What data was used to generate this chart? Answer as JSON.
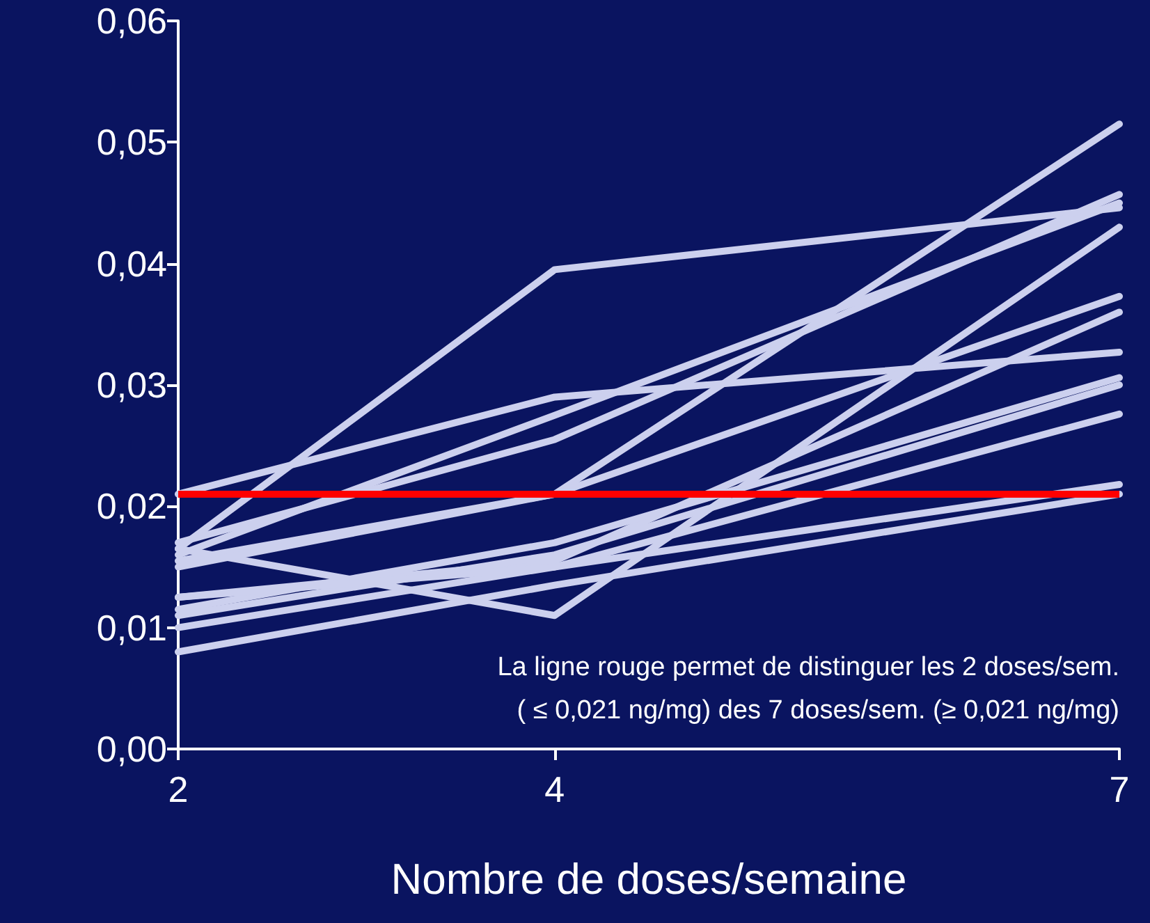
{
  "chart_data": {
    "type": "line",
    "xlabel": "Nombre de doses/semaine",
    "x": [
      2,
      4,
      7
    ],
    "xlim": [
      2,
      7
    ],
    "xticks": [
      2,
      4,
      7
    ],
    "ylim": [
      0,
      0.06
    ],
    "yticks": [
      {
        "value": 0,
        "label": "0,00"
      },
      {
        "value": 0.01,
        "label": "0,01"
      },
      {
        "value": 0.02,
        "label": "0,02"
      },
      {
        "value": 0.03,
        "label": "0,03"
      },
      {
        "value": 0.04,
        "label": "0,04"
      },
      {
        "value": 0.05,
        "label": "0,05"
      },
      {
        "value": 0.06,
        "label": "0,06"
      }
    ],
    "series": [
      {
        "color": "#ccd0ee",
        "values": [
          0.021,
          0.029,
          0.0327
        ]
      },
      {
        "color": "#ccd0ee",
        "values": [
          0.0165,
          0.0395,
          0.0446
        ]
      },
      {
        "color": "#ccd0ee",
        "values": [
          0.017,
          0.0255,
          0.0457
        ]
      },
      {
        "color": "#ccd0ee",
        "values": [
          0.016,
          0.0275,
          0.045
        ]
      },
      {
        "color": "#ccd0ee",
        "values": [
          0.0155,
          0.021,
          0.0515
        ]
      },
      {
        "color": "#ccd0ee",
        "values": [
          0.0165,
          0.011,
          0.043
        ]
      },
      {
        "color": "#ccd0ee",
        "values": [
          0.0125,
          0.0155,
          0.036
        ]
      },
      {
        "color": "#ccd0ee",
        "values": [
          0.015,
          0.021,
          0.0373
        ]
      },
      {
        "color": "#ccd0ee",
        "values": [
          0.0115,
          0.017,
          0.0306
        ]
      },
      {
        "color": "#ccd0ee",
        "values": [
          0.011,
          0.016,
          0.03
        ]
      },
      {
        "color": "#ccd0ee",
        "values": [
          0.01,
          0.015,
          0.0276
        ]
      },
      {
        "color": "#ccd0ee",
        "values": [
          0.0125,
          0.015,
          0.0218
        ]
      },
      {
        "color": "#ccd0ee",
        "values": [
          0.008,
          0.0135,
          0.021
        ]
      }
    ],
    "ref_lines": [
      {
        "axis": "y",
        "value": 0.021,
        "color": "#ff0000"
      }
    ],
    "annotations": [
      "La ligne rouge permet de distinguer les 2 doses/sem.",
      "( ≤ 0,021 ng/mg) des 7 doses/sem. (≥ 0,021 ng/mg)"
    ],
    "grid": false,
    "marker": "none",
    "line_style": "solid"
  }
}
